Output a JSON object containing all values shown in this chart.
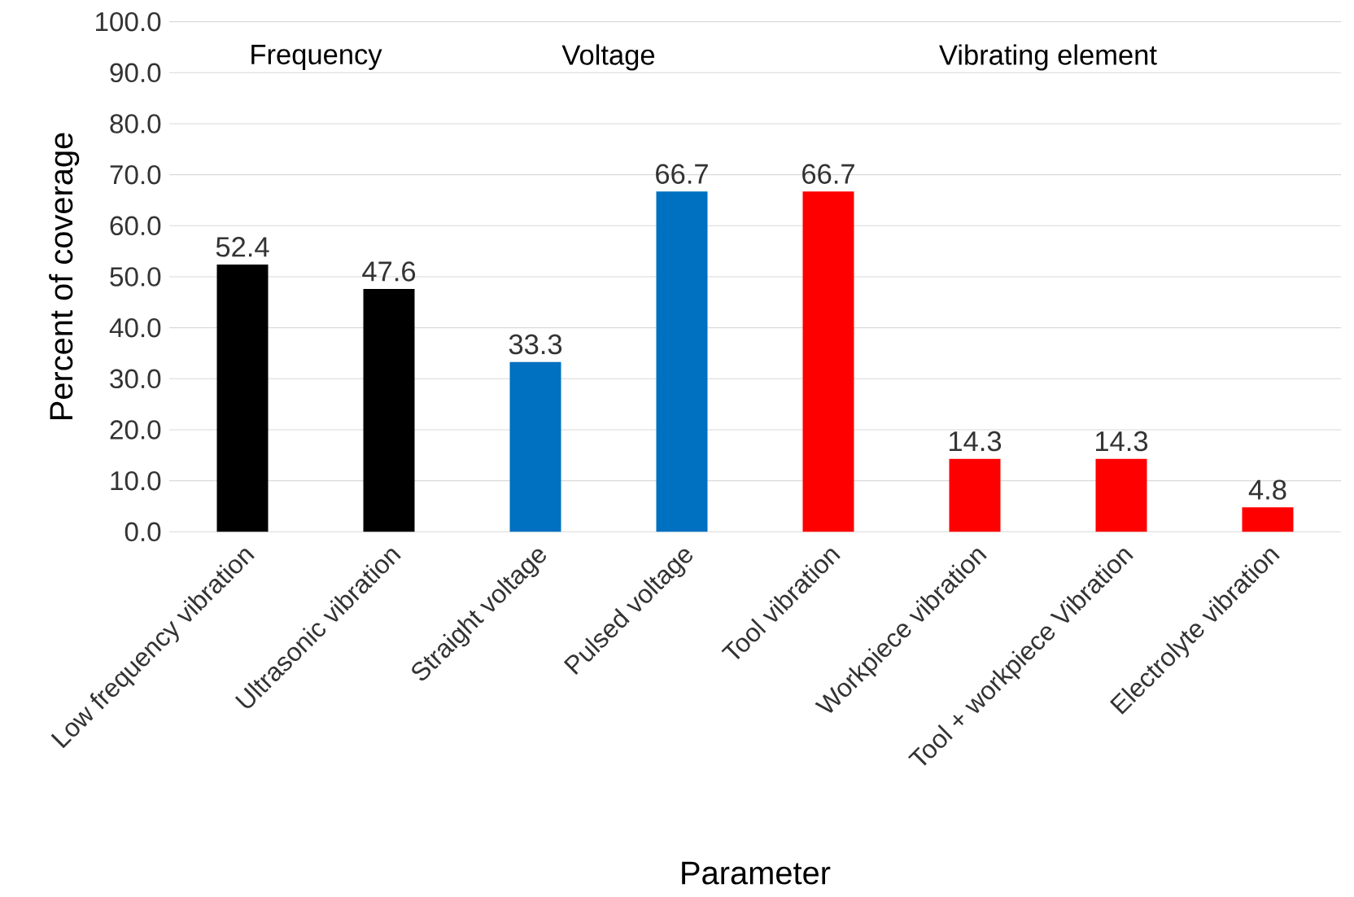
{
  "chart_data": {
    "type": "bar",
    "xlabel": "Parameter",
    "ylabel": "Percent of coverage",
    "categories": [
      "Low frequency  vibration",
      "Ultrasonic vibration",
      "Straight  voltage",
      "Pulsed voltage",
      "Tool vibration",
      "Workpiece vibration",
      "Tool + workpiece Vibration",
      "Electrolyte vibration"
    ],
    "values": [
      52.4,
      47.6,
      33.3,
      66.7,
      66.7,
      14.3,
      14.3,
      4.8
    ],
    "colors": [
      "#000000",
      "#000000",
      "#0070c0",
      "#0070c0",
      "#ff0000",
      "#ff0000",
      "#ff0000",
      "#ff0000"
    ],
    "ylim": [
      0,
      100
    ],
    "yticks": [
      {
        "value": 0,
        "label": "0.0"
      },
      {
        "value": 10,
        "label": "10.0"
      },
      {
        "value": 20,
        "label": "20.0"
      },
      {
        "value": 30,
        "label": "30.0"
      },
      {
        "value": 40,
        "label": "40.0"
      },
      {
        "value": 50,
        "label": "50.0"
      },
      {
        "value": 60,
        "label": "60.0"
      },
      {
        "value": 70,
        "label": "70.0"
      },
      {
        "value": 80,
        "label": "80.0"
      },
      {
        "value": 90,
        "label": "90.0"
      },
      {
        "value": 100,
        "label": "100.0"
      }
    ],
    "grid": "y",
    "data_labels": true,
    "annotations": [
      "Frequency",
      "Voltage",
      "Vibrating element"
    ]
  }
}
